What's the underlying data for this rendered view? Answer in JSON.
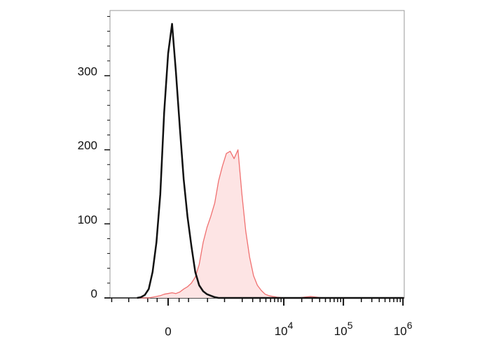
{
  "chart_data": {
    "type": "line",
    "x": [
      -346,
      -287,
      -235,
      -188,
      -146,
      -107,
      -70,
      -35,
      0,
      35,
      70,
      107,
      146,
      188,
      235,
      287,
      346,
      414,
      488,
      572,
      674,
      788,
      921,
      1074,
      1252,
      1456,
      1696,
      1973,
      2294,
      2668,
      3103,
      3605,
      4189,
      4866,
      5654,
      6570,
      7635,
      10300,
      17000,
      28000,
      46000,
      125000,
      1025000
    ],
    "series": [
      {
        "color": "#111111",
        "fill": false,
        "values": [
          0,
          1,
          4,
          12,
          35,
          75,
          140,
          250,
          330,
          370,
          305,
          230,
          160,
          110,
          70,
          35,
          17,
          9,
          5,
          3,
          1,
          0,
          0,
          0,
          0,
          0,
          0,
          0,
          0,
          0,
          0,
          0,
          0,
          0,
          0,
          0,
          0,
          0,
          0,
          0,
          0,
          0,
          0
        ]
      },
      {
        "color": "#f07070",
        "fill": true,
        "fill_color": "#fde4e4",
        "values": [
          0,
          0,
          0,
          0,
          1,
          2,
          3,
          5,
          6,
          7,
          6,
          8,
          12,
          15,
          20,
          28,
          45,
          75,
          95,
          110,
          128,
          158,
          178,
          195,
          198,
          188,
          200,
          140,
          90,
          55,
          30,
          17,
          10,
          5,
          3,
          2,
          1,
          0,
          0,
          2,
          0,
          0,
          0
        ]
      }
    ],
    "xscale": "asinh",
    "xscale_width": 229,
    "xlim": [
      -1070,
      1050000
    ],
    "xticks": [
      0,
      {
        "value": 10000,
        "label": "10",
        "exponent": "4"
      },
      {
        "value": 100000,
        "label": "10",
        "exponent": "5"
      },
      {
        "value": 1000000,
        "label": "10",
        "exponent": "6"
      }
    ],
    "xminorticks": [
      -1000,
      -500,
      -200,
      -100,
      100,
      200,
      500,
      1000,
      2000,
      3000,
      4000,
      5000,
      6000,
      7000,
      8000,
      9000,
      20000,
      30000,
      40000,
      50000,
      60000,
      70000,
      80000,
      90000,
      200000,
      300000,
      400000,
      500000,
      600000,
      700000,
      800000,
      900000
    ],
    "ylim": [
      0,
      388
    ],
    "yticks": [
      0,
      100,
      200,
      300
    ],
    "yminorticks": [
      0,
      20,
      40,
      60,
      80,
      100,
      120,
      140,
      160,
      180,
      200,
      220,
      240,
      260,
      280,
      300,
      320,
      340,
      360,
      380
    ]
  }
}
